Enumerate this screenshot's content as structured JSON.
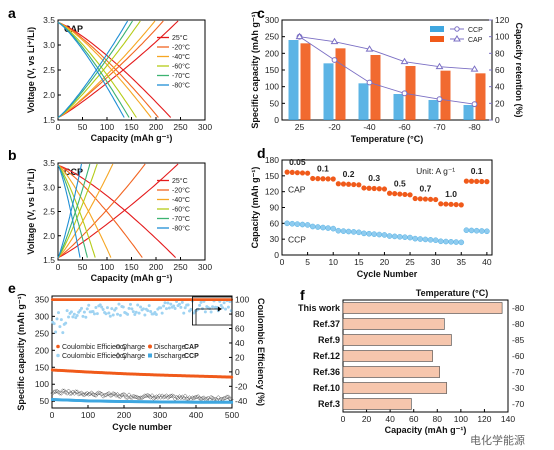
{
  "panels": {
    "a": {
      "label": "a",
      "tag": "CAP",
      "xlabel": "Capacity (mAh g⁻¹)",
      "ylabel": "Voltage (V, vs Li⁺/Li)",
      "xticks": [
        "0",
        "50",
        "100",
        "150",
        "200",
        "250",
        "300"
      ],
      "yticks": [
        "1.5",
        "2.0",
        "2.5",
        "3.0",
        "3.5"
      ],
      "legend": [
        "25°C",
        "-20°C",
        "-40°C",
        "-60°C",
        "-70°C",
        "-80°C"
      ]
    },
    "b": {
      "label": "b",
      "tag": "CCP",
      "xlabel": "Capacity (mAh g⁻¹)",
      "ylabel": "Voltage (V, vs Li⁺/Li)",
      "xticks": [
        "0",
        "50",
        "100",
        "150",
        "200",
        "250",
        "300"
      ],
      "yticks": [
        "1.5",
        "2.0",
        "2.5",
        "3.0",
        "3.5"
      ],
      "legend": [
        "25°C",
        "-20°C",
        "-40°C",
        "-60°C",
        "-70°C",
        "-80°C"
      ]
    },
    "c": {
      "label": "c",
      "xlabel": "Temperature (°C)",
      "ylabel": "Specific capacity (mAh g⁻¹)",
      "y2label": "Capacity retention (%)",
      "yticks": [
        "0",
        "50",
        "100",
        "150",
        "200",
        "250",
        "300"
      ],
      "y2ticks": [
        "0",
        "20",
        "40",
        "60",
        "80",
        "100",
        "120"
      ],
      "legend": [
        "CCP",
        "CAP"
      ]
    },
    "d": {
      "label": "d",
      "xlabel": "Cycle Number",
      "ylabel": "Capacity (mAh g⁻¹)",
      "xticks": [
        "0",
        "5",
        "10",
        "15",
        "20",
        "25",
        "30",
        "35",
        "40"
      ],
      "yticks": [
        "0",
        "30",
        "60",
        "90",
        "120",
        "150",
        "180"
      ],
      "unit": "Unit: A g⁻¹",
      "rates": [
        "0.05",
        "0.1",
        "0.2",
        "0.3",
        "0.5",
        "0.7",
        "1.0",
        "0.1"
      ],
      "cap_label": "CAP",
      "ccp_label": "CCP"
    },
    "e": {
      "label": "e",
      "xlabel": "Cycle number",
      "ylabel": "Specific capacity (mAh g⁻¹)",
      "y2label": "Coulombic Efficiency (%)",
      "xticks": [
        "0",
        "100",
        "200",
        "300",
        "400",
        "500"
      ],
      "yticks": [
        "50",
        "100",
        "150",
        "200",
        "250",
        "300",
        "350"
      ],
      "y2ticks": [
        "-40",
        "-20",
        "0",
        "20",
        "40",
        "60",
        "80",
        "100"
      ],
      "legend_row1": [
        "Coulombic Efficiency",
        "Charge",
        "Discharge",
        "CAP"
      ],
      "legend_row2": [
        "Coulombic Efficiency",
        "Charge",
        "Discharge",
        "CCP"
      ]
    },
    "f": {
      "label": "f",
      "xlabel": "Capacity (mAh g⁻¹)",
      "xticks": [
        "0",
        "20",
        "40",
        "60",
        "80",
        "100",
        "120",
        "140"
      ],
      "temp_header": "Temperature (°C)"
    }
  },
  "watermark": "电化学能源",
  "colors": {
    "t25": "#e41a1c",
    "t20": "#f26522",
    "t40": "#f6a623",
    "t60": "#b5cc18",
    "t70": "#3cb371",
    "t80": "#1f8fd6",
    "cap": "#f05a1a",
    "ccp": "#3fa7e0",
    "retention": "#7b6fc4",
    "bar_f": "#f6c6ad"
  },
  "chart_data": [
    {
      "panel": "a",
      "type": "line",
      "title": "CAP",
      "xlabel": "Capacity (mAh g-1)",
      "ylabel": "Voltage (V, vs Li+/Li)",
      "xlim": [
        0,
        300
      ],
      "ylim": [
        1.5,
        3.5
      ],
      "series": [
        {
          "name": "25°C",
          "charge_end_x": 245,
          "discharge_end_x": 230
        },
        {
          "name": "-20°C",
          "charge_end_x": 215,
          "discharge_end_x": 205
        },
        {
          "name": "-40°C",
          "charge_end_x": 198,
          "discharge_end_x": 190
        },
        {
          "name": "-60°C",
          "charge_end_x": 168,
          "discharge_end_x": 160
        },
        {
          "name": "-70°C",
          "charge_end_x": 152,
          "discharge_end_x": 145
        },
        {
          "name": "-80°C",
          "charge_end_x": 142,
          "discharge_end_x": 135
        }
      ]
    },
    {
      "panel": "b",
      "type": "line",
      "title": "CCP",
      "xlabel": "Capacity (mAh g-1)",
      "ylabel": "Voltage (V, vs Li+/Li)",
      "xlim": [
        0,
        300
      ],
      "ylim": [
        1.5,
        3.5
      ],
      "series": [
        {
          "name": "25°C",
          "charge_end_x": 245,
          "discharge_end_x": 240
        },
        {
          "name": "-20°C",
          "charge_end_x": 178,
          "discharge_end_x": 172
        },
        {
          "name": "-40°C",
          "charge_end_x": 112,
          "discharge_end_x": 108
        },
        {
          "name": "-60°C",
          "charge_end_x": 80,
          "discharge_end_x": 76
        },
        {
          "name": "-70°C",
          "charge_end_x": 65,
          "discharge_end_x": 60
        },
        {
          "name": "-80°C",
          "charge_end_x": 48,
          "discharge_end_x": 45
        }
      ]
    },
    {
      "panel": "c",
      "type": "bar",
      "categories": [
        "25",
        "-20",
        "-40",
        "-60",
        "-70",
        "-80"
      ],
      "xlabel": "Temperature (°C)",
      "ylabel": "Specific capacity (mAh g-1)",
      "y2label": "Capacity retention (%)",
      "ylim": [
        0,
        300
      ],
      "y2lim": [
        0,
        120
      ],
      "series": [
        {
          "name": "CCP",
          "values": [
            240,
            170,
            110,
            78,
            60,
            45
          ]
        },
        {
          "name": "CAP",
          "values": [
            230,
            215,
            195,
            162,
            148,
            140
          ]
        },
        {
          "name": "CCP",
          "axis": "right",
          "values": [
            100,
            72,
            45,
            32,
            25,
            19
          ]
        },
        {
          "name": "CAP",
          "axis": "right",
          "values": [
            100,
            94,
            85,
            70,
            64,
            61
          ]
        }
      ]
    },
    {
      "panel": "d",
      "type": "scatter",
      "xlabel": "Cycle Number",
      "ylabel": "Capacity (mAh g-1)",
      "xlim": [
        0,
        41
      ],
      "ylim": [
        0,
        180
      ],
      "segments": [
        {
          "rate": "0.05",
          "x": [
            1,
            5
          ],
          "cap": [
            157,
            155
          ],
          "ccp": [
            60,
            57
          ]
        },
        {
          "rate": "0.1",
          "x": [
            6,
            10
          ],
          "cap": [
            145,
            144
          ],
          "ccp": [
            54,
            50
          ]
        },
        {
          "rate": "0.2",
          "x": [
            11,
            15
          ],
          "cap": [
            135,
            133
          ],
          "ccp": [
            46,
            43
          ]
        },
        {
          "rate": "0.3",
          "x": [
            16,
            20
          ],
          "cap": [
            127,
            125
          ],
          "ccp": [
            41,
            38
          ]
        },
        {
          "rate": "0.5",
          "x": [
            21,
            25
          ],
          "cap": [
            117,
            114
          ],
          "ccp": [
            36,
            33
          ]
        },
        {
          "rate": "0.7",
          "x": [
            26,
            30
          ],
          "cap": [
            107,
            105
          ],
          "ccp": [
            31,
            28
          ]
        },
        {
          "rate": "1.0",
          "x": [
            31,
            35
          ],
          "cap": [
            97,
            95
          ],
          "ccp": [
            26,
            24
          ]
        },
        {
          "rate": "0.1",
          "x": [
            36,
            40
          ],
          "cap": [
            140,
            139
          ],
          "ccp": [
            47,
            45
          ]
        }
      ]
    },
    {
      "panel": "e",
      "type": "scatter",
      "xlabel": "Cycle number",
      "ylabel": "Specific capacity (mAh g-1)",
      "y2label": "Coulombic Efficiency (%)",
      "xlim": [
        0,
        500
      ],
      "ylim": [
        30,
        360
      ],
      "y2lim": [
        -50,
        105
      ],
      "series": [
        {
          "name": "Discharge CAP",
          "x": [
            0,
            100,
            200,
            300,
            400,
            500
          ],
          "values": [
            142,
            136,
            131,
            127,
            124,
            121
          ]
        },
        {
          "name": "Discharge CCP",
          "x": [
            0,
            100,
            200,
            300,
            400,
            500
          ],
          "values": [
            55,
            51,
            49,
            48,
            47,
            47
          ]
        },
        {
          "name": "Charge CCP",
          "x": [
            0,
            100,
            200,
            300,
            400,
            500
          ],
          "values": [
            78,
            72,
            66,
            62,
            60,
            58
          ]
        },
        {
          "name": "Coulombic Efficiency CAP",
          "axis": "right",
          "x": [
            0,
            100,
            200,
            300,
            400,
            500
          ],
          "values": [
            100,
            100,
            100,
            100,
            100,
            100
          ]
        },
        {
          "name": "Coulombic Efficiency CCP",
          "axis": "right",
          "x": [
            0,
            100,
            200,
            300,
            400,
            500
          ],
          "values": [
            80,
            84,
            87,
            88,
            90,
            92
          ]
        }
      ]
    },
    {
      "panel": "f",
      "type": "bar",
      "orientation": "horizontal",
      "xlabel": "Capacity (mAh g-1)",
      "xlim": [
        0,
        140
      ],
      "categories": [
        "This work",
        "Ref.37",
        "Ref.9",
        "Ref.12",
        "Ref.36",
        "Ref.10",
        "Ref.3"
      ],
      "values": [
        135,
        86,
        92,
        76,
        82,
        88,
        58
      ],
      "temperatures": [
        "-80",
        "-80",
        "-85",
        "-60",
        "-70",
        "-30",
        "-70"
      ]
    }
  ]
}
